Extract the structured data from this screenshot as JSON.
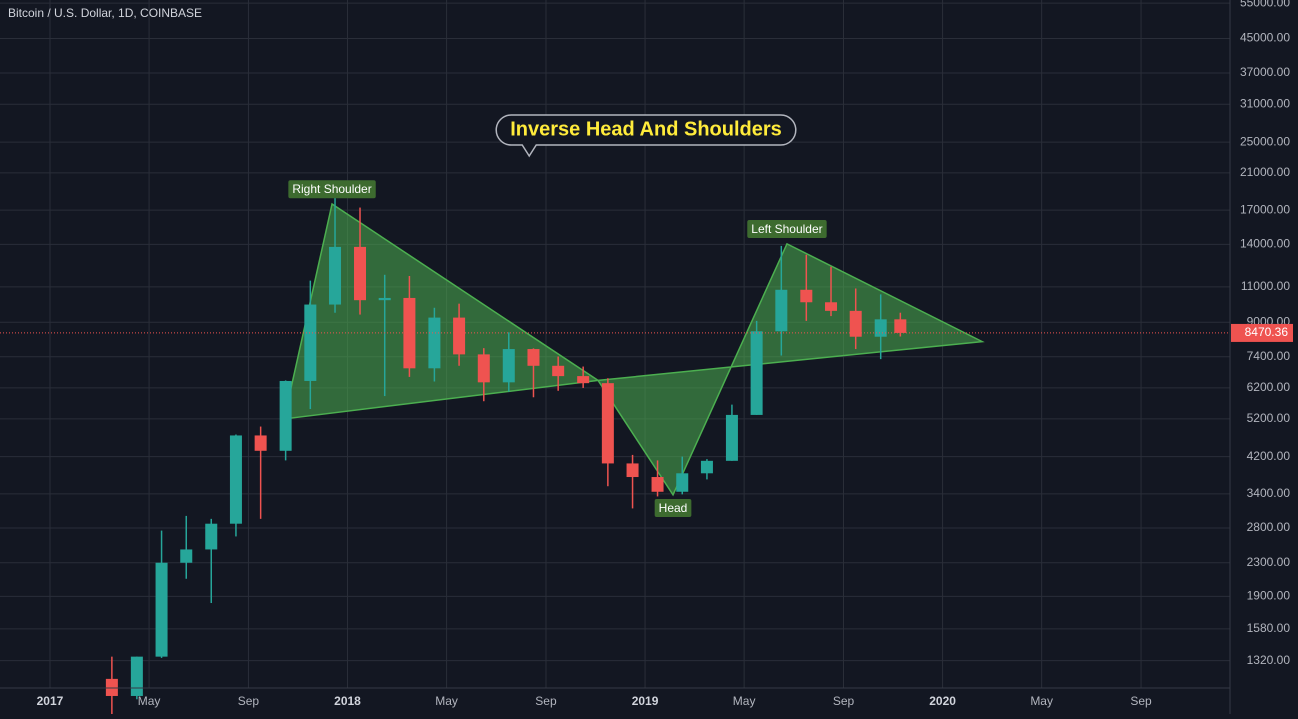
{
  "chart_data": {
    "type": "candlestick",
    "title": "Bitcoin / U.S. Dollar, 1D, COINBASE",
    "callout": "Inverse Head And Shoulders",
    "x": [
      2017.208,
      2017.292,
      2017.375,
      2017.458,
      2017.542,
      2017.625,
      2017.708,
      2017.792,
      2017.875,
      2017.958,
      2018.042,
      2018.125,
      2018.208,
      2018.292,
      2018.375,
      2018.458,
      2018.542,
      2018.625,
      2018.708,
      2018.792,
      2018.875,
      2018.958,
      2019.042,
      2019.125,
      2019.208,
      2019.292,
      2019.375,
      2019.458,
      2019.542,
      2019.625,
      2019.708,
      2019.792,
      2019.858
    ],
    "open": [
      1190,
      1080,
      1350,
      2300,
      2480,
      2870,
      4735,
      4340,
      6450,
      9950,
      13800,
      10200,
      10330,
      6930,
      9240,
      7500,
      6400,
      7730,
      7030,
      6630,
      6370,
      4040,
      3740,
      3440,
      3820,
      4100,
      5320,
      8550,
      10820,
      10080,
      9600,
      8290,
      9150
    ],
    "high": [
      1350,
      1350,
      2760,
      3000,
      2950,
      4760,
      4980,
      6470,
      11400,
      19890,
      17250,
      11780,
      11700,
      9770,
      10000,
      7770,
      8500,
      7760,
      7410,
      7000,
      6550,
      4240,
      4110,
      4200,
      4140,
      5640,
      9070,
      13880,
      13200,
      12330,
      10900,
      10540,
      9500
    ],
    "low": [
      890,
      1060,
      1340,
      2100,
      1830,
      2670,
      2950,
      4110,
      5500,
      9500,
      9400,
      5920,
      6600,
      6430,
      7030,
      5750,
      6070,
      5880,
      6100,
      6200,
      3550,
      3130,
      3350,
      3390,
      3690,
      4100,
      5320,
      7450,
      9070,
      9320,
      7730,
      7300,
      8300
    ],
    "close": [
      1080,
      1350,
      2300,
      2480,
      2870,
      4735,
      4340,
      6450,
      9950,
      13800,
      10200,
      10330,
      6930,
      9240,
      7500,
      6400,
      7730,
      7030,
      6630,
      6370,
      4040,
      3740,
      3440,
      3820,
      4100,
      5320,
      8550,
      10820,
      10080,
      9600,
      8290,
      9150,
      8470.36
    ],
    "up_color": "#26a69a",
    "down_color": "#ef5350",
    "last_price": 8470.36,
    "log_scale": true,
    "grid": true,
    "xlim": [
      2016.832,
      2020.966
    ],
    "xticks": [
      2017,
      {
        "value": 2017.333,
        "label": "May"
      },
      {
        "value": 2017.667,
        "label": "Sep"
      },
      2018,
      {
        "value": 2018.333,
        "label": "May"
      },
      {
        "value": 2018.667,
        "label": "Sep"
      },
      2019,
      {
        "value": 2019.333,
        "label": "May"
      },
      {
        "value": 2019.667,
        "label": "Sep"
      },
      2020,
      {
        "value": 2020.333,
        "label": "May"
      },
      {
        "value": 2020.667,
        "label": "Sep"
      }
    ],
    "ylim": [
      1130,
      56000
    ],
    "yticks": [
      {
        "value": 55000,
        "label": "55000.00"
      },
      {
        "value": 45000,
        "label": "45000.00"
      },
      {
        "value": 37000,
        "label": "37000.00"
      },
      {
        "value": 31000,
        "label": "31000.00"
      },
      {
        "value": 25000,
        "label": "25000.00"
      },
      {
        "value": 21000,
        "label": "21000.00"
      },
      {
        "value": 17000,
        "label": "17000.00"
      },
      {
        "value": 14000,
        "label": "14000.00"
      },
      {
        "value": 11000,
        "label": "11000.00"
      },
      {
        "value": 9000,
        "label": "9000.00"
      },
      {
        "value": 7400,
        "label": "7400.00"
      },
      {
        "value": 6200,
        "label": "6200.00"
      },
      {
        "value": 5200,
        "label": "5200.00"
      },
      {
        "value": 4200,
        "label": "4200.00"
      },
      {
        "value": 3400,
        "label": "3400.00"
      },
      {
        "value": 2800,
        "label": "2800.00"
      },
      {
        "value": 2300,
        "label": "2300.00"
      },
      {
        "value": 1900,
        "label": "1900.00"
      },
      {
        "value": 1580,
        "label": "1580.00"
      },
      {
        "value": 1320,
        "label": "1320.00"
      }
    ],
    "pattern": {
      "color": "#4caf50",
      "points": [
        {
          "x": 2017.787,
          "price": 5200
        },
        {
          "x": 2017.948,
          "price": 17600,
          "label": "Right Shoulder"
        },
        {
          "x": 2018.842,
          "price": 6470
        },
        {
          "x": 2019.094,
          "price": 3380,
          "label": "Head"
        },
        {
          "x": 2019.477,
          "price": 14040,
          "label": "Left Shoulder"
        },
        {
          "x": 2020.133,
          "price": 8065
        }
      ]
    }
  }
}
